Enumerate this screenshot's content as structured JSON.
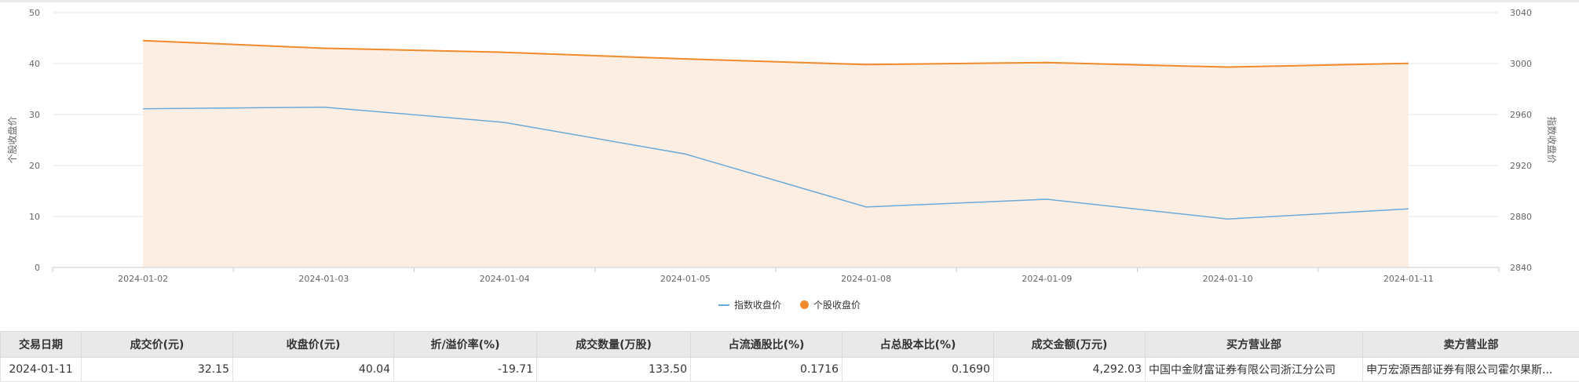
{
  "chart_data": {
    "type": "line",
    "categories": [
      "2024-01-02",
      "2024-01-03",
      "2024-01-04",
      "2024-01-05",
      "2024-01-08",
      "2024-01-09",
      "2024-01-10",
      "2024-01-11"
    ],
    "y_left": {
      "label": "个股收盘价",
      "min": 0,
      "max": 50,
      "ticks": [
        0,
        10,
        20,
        30,
        40,
        50
      ]
    },
    "y_right": {
      "label": "指数收盘价",
      "min": 2840,
      "max": 3040,
      "ticks": [
        2840,
        2880,
        2920,
        2960,
        3000,
        3040
      ]
    },
    "series": [
      {
        "name": "指数收盘价",
        "axis": "right",
        "style": "line",
        "color": "#6aa9d8",
        "values": [
          2964.5,
          2965.8,
          2953.8,
          2929.0,
          2887.5,
          2893.5,
          2878.0,
          2886.0
        ]
      },
      {
        "name": "个股收盘价",
        "axis": "left",
        "style": "area",
        "color": "#f08a2c",
        "fill": "#fdeee3",
        "values": [
          44.5,
          43.0,
          42.2,
          40.9,
          39.8,
          40.2,
          39.3,
          40.04
        ]
      }
    ],
    "legend_position": "bottom-center",
    "grid": true
  },
  "table": {
    "headers": [
      "交易日期",
      "成交价(元)",
      "收盘价(元)",
      "折/溢价率(%)",
      "成交数量(万股)",
      "占流通股比(%)",
      "占总股本比(%)",
      "成交金额(万元)",
      "买方营业部",
      "卖方营业部"
    ],
    "rows": [
      [
        "2024-01-11",
        "32.15",
        "40.04",
        "-19.71",
        "133.50",
        "0.1716",
        "0.1690",
        "4,292.03",
        "中国中金财富证券有限公司浙江分公司",
        "申万宏源西部证券有限公司霍尔果斯..."
      ]
    ]
  }
}
